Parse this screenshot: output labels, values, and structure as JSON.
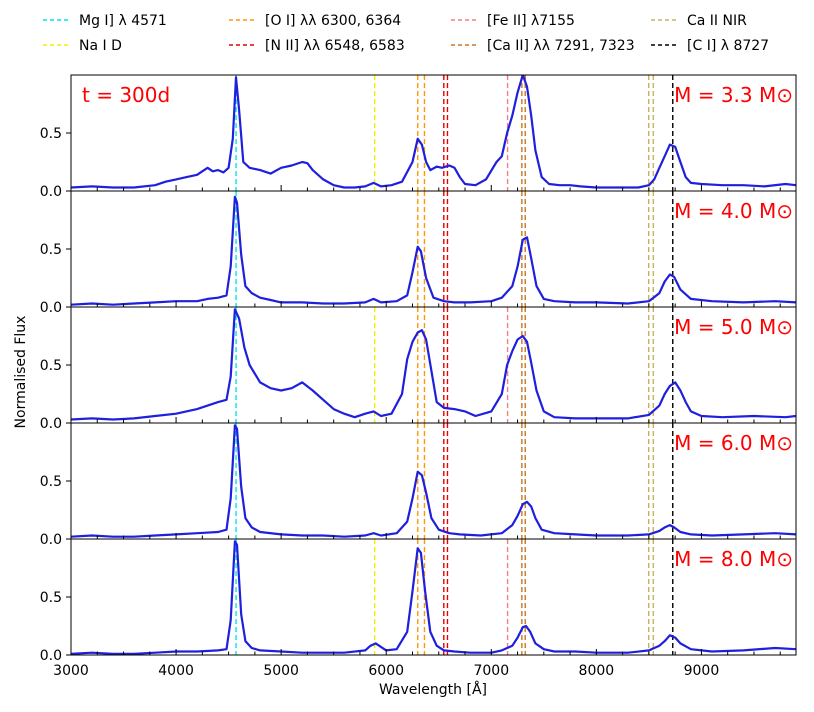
{
  "chart_data": {
    "type": "line",
    "xlabel": "Wavelength [Å]",
    "ylabel": "Normalised Flux",
    "xlim": [
      3000,
      9900
    ],
    "ylim": [
      0,
      1.0
    ],
    "x_ticks": [
      3000,
      4000,
      5000,
      6000,
      7000,
      8000,
      9000
    ],
    "x_tick_labels": [
      "3000",
      "4000",
      "5000",
      "6000",
      "7000",
      "8000",
      "9000"
    ],
    "y_ticks": [
      0,
      0.5
    ],
    "y_tick_labels": [
      "0.0",
      "0.5"
    ],
    "time_label": "t = 300d",
    "line_color": "#1f1fde",
    "legend": [
      {
        "label": "Mg I] λ 4571",
        "color": "#00e5ee"
      },
      {
        "label": "Na I D",
        "color": "#f2f200"
      },
      {
        "label": "[O I] λλ 6300, 6364",
        "color": "#ff9900"
      },
      {
        "label": "[N II] λλ 6548, 6583",
        "color": "#e60000"
      },
      {
        "label": "[Fe II] λ7155",
        "color": "#f08080"
      },
      {
        "label": "[Ca II] λλ 7291, 7323",
        "color": "#cc7722"
      },
      {
        "label": "Ca II NIR",
        "color": "#c8b060"
      },
      {
        "label": "[C I] λ 8727",
        "color": "#000000"
      }
    ],
    "reference_lines": [
      {
        "group": 0,
        "x": [
          4571
        ],
        "panels": [
          0,
          1,
          2,
          3,
          4
        ]
      },
      {
        "group": 1,
        "x": [
          5890
        ],
        "panels": [
          0,
          2,
          4
        ]
      },
      {
        "group": 2,
        "x": [
          6300,
          6364
        ],
        "panels": [
          0,
          1,
          2,
          3,
          4
        ]
      },
      {
        "group": 3,
        "x": [
          6548,
          6583
        ],
        "panels": [
          0,
          1,
          2,
          3,
          4
        ]
      },
      {
        "group": 4,
        "x": [
          7155
        ],
        "panels": [
          0,
          2,
          4
        ]
      },
      {
        "group": 5,
        "x": [
          7291,
          7323
        ],
        "panels": [
          0,
          1,
          2,
          3,
          4
        ]
      },
      {
        "group": 6,
        "x": [
          8498,
          8542
        ],
        "panels": [
          0,
          1,
          2,
          3,
          4
        ]
      },
      {
        "group": 7,
        "x": [
          8727
        ],
        "panels": [
          0,
          1,
          2,
          3,
          4
        ]
      }
    ],
    "panels": [
      {
        "mass_label": "M = 3.3 M⊙",
        "x": [
          3000,
          3200,
          3400,
          3600,
          3800,
          3900,
          4000,
          4100,
          4200,
          4250,
          4300,
          4350,
          4400,
          4450,
          4500,
          4540,
          4570,
          4600,
          4640,
          4700,
          4800,
          4900,
          5000,
          5100,
          5200,
          5250,
          5300,
          5400,
          5500,
          5600,
          5700,
          5800,
          5880,
          5950,
          6050,
          6150,
          6250,
          6300,
          6340,
          6380,
          6420,
          6480,
          6530,
          6600,
          6650,
          6700,
          6750,
          6850,
          6950,
          7050,
          7100,
          7150,
          7200,
          7250,
          7300,
          7340,
          7380,
          7420,
          7480,
          7550,
          7650,
          7750,
          7850,
          8000,
          8200,
          8400,
          8500,
          8550,
          8600,
          8650,
          8700,
          8750,
          8800,
          8850,
          8900,
          9000,
          9200,
          9400,
          9600,
          9800,
          9900
        ],
        "values": [
          0.03,
          0.04,
          0.03,
          0.03,
          0.05,
          0.08,
          0.1,
          0.12,
          0.14,
          0.17,
          0.2,
          0.17,
          0.18,
          0.16,
          0.2,
          0.45,
          0.98,
          0.7,
          0.25,
          0.2,
          0.18,
          0.15,
          0.2,
          0.22,
          0.25,
          0.24,
          0.18,
          0.1,
          0.05,
          0.03,
          0.03,
          0.04,
          0.07,
          0.04,
          0.05,
          0.08,
          0.25,
          0.45,
          0.4,
          0.25,
          0.18,
          0.21,
          0.2,
          0.22,
          0.2,
          0.12,
          0.06,
          0.05,
          0.1,
          0.25,
          0.3,
          0.5,
          0.65,
          0.85,
          1.0,
          0.9,
          0.65,
          0.35,
          0.12,
          0.06,
          0.05,
          0.05,
          0.04,
          0.03,
          0.03,
          0.03,
          0.05,
          0.1,
          0.2,
          0.3,
          0.4,
          0.38,
          0.25,
          0.12,
          0.07,
          0.06,
          0.05,
          0.05,
          0.04,
          0.06,
          0.05
        ]
      },
      {
        "mass_label": "M = 4.0 M⊙",
        "x": [
          3000,
          3200,
          3400,
          3600,
          3800,
          4000,
          4200,
          4300,
          4400,
          4480,
          4520,
          4560,
          4580,
          4620,
          4660,
          4720,
          4800,
          4900,
          5000,
          5200,
          5400,
          5600,
          5800,
          5880,
          5950,
          6100,
          6200,
          6250,
          6300,
          6330,
          6380,
          6450,
          6550,
          6650,
          6800,
          7000,
          7100,
          7200,
          7250,
          7300,
          7340,
          7380,
          7430,
          7500,
          7600,
          7800,
          8000,
          8300,
          8500,
          8600,
          8650,
          8700,
          8740,
          8800,
          8900,
          9100,
          9400,
          9700,
          9900
        ],
        "values": [
          0.02,
          0.03,
          0.02,
          0.03,
          0.04,
          0.05,
          0.05,
          0.07,
          0.08,
          0.1,
          0.35,
          0.95,
          0.9,
          0.45,
          0.18,
          0.12,
          0.08,
          0.06,
          0.04,
          0.04,
          0.03,
          0.03,
          0.04,
          0.07,
          0.04,
          0.05,
          0.1,
          0.3,
          0.52,
          0.48,
          0.25,
          0.08,
          0.05,
          0.04,
          0.04,
          0.05,
          0.08,
          0.18,
          0.35,
          0.58,
          0.6,
          0.42,
          0.18,
          0.07,
          0.05,
          0.04,
          0.04,
          0.03,
          0.05,
          0.12,
          0.22,
          0.28,
          0.26,
          0.15,
          0.07,
          0.05,
          0.04,
          0.05,
          0.04
        ]
      },
      {
        "mass_label": "M = 5.0 M⊙",
        "x": [
          3000,
          3200,
          3400,
          3600,
          3800,
          4000,
          4200,
          4300,
          4400,
          4480,
          4520,
          4560,
          4600,
          4650,
          4700,
          4800,
          4900,
          5000,
          5100,
          5200,
          5300,
          5400,
          5500,
          5600,
          5700,
          5800,
          5880,
          5950,
          6050,
          6150,
          6200,
          6250,
          6300,
          6340,
          6380,
          6430,
          6480,
          6550,
          6650,
          6750,
          6850,
          7000,
          7100,
          7150,
          7200,
          7250,
          7300,
          7340,
          7380,
          7430,
          7500,
          7600,
          7800,
          8000,
          8300,
          8500,
          8600,
          8650,
          8700,
          8750,
          8800,
          8850,
          8900,
          9000,
          9200,
          9500,
          9800,
          9900
        ],
        "values": [
          0.03,
          0.04,
          0.03,
          0.04,
          0.06,
          0.08,
          0.12,
          0.15,
          0.18,
          0.2,
          0.4,
          0.98,
          0.9,
          0.65,
          0.5,
          0.35,
          0.3,
          0.28,
          0.3,
          0.35,
          0.28,
          0.2,
          0.12,
          0.08,
          0.05,
          0.08,
          0.1,
          0.06,
          0.08,
          0.25,
          0.55,
          0.7,
          0.78,
          0.8,
          0.72,
          0.45,
          0.18,
          0.13,
          0.12,
          0.1,
          0.06,
          0.1,
          0.25,
          0.5,
          0.62,
          0.72,
          0.75,
          0.7,
          0.52,
          0.28,
          0.1,
          0.05,
          0.04,
          0.04,
          0.04,
          0.07,
          0.15,
          0.25,
          0.32,
          0.35,
          0.28,
          0.18,
          0.1,
          0.06,
          0.05,
          0.06,
          0.05,
          0.06
        ]
      },
      {
        "mass_label": "M = 6.0 M⊙",
        "x": [
          3000,
          3200,
          3400,
          3600,
          3800,
          4000,
          4200,
          4400,
          4480,
          4520,
          4560,
          4580,
          4620,
          4660,
          4720,
          4800,
          5000,
          5200,
          5400,
          5600,
          5800,
          5880,
          5950,
          6100,
          6200,
          6250,
          6300,
          6340,
          6380,
          6430,
          6500,
          6600,
          6700,
          6900,
          7100,
          7200,
          7250,
          7300,
          7340,
          7380,
          7420,
          7480,
          7600,
          7800,
          8000,
          8300,
          8500,
          8600,
          8650,
          8700,
          8740,
          8800,
          8900,
          9100,
          9400,
          9700,
          9900
        ],
        "values": [
          0.02,
          0.03,
          0.02,
          0.02,
          0.03,
          0.04,
          0.05,
          0.06,
          0.08,
          0.35,
          0.98,
          0.95,
          0.45,
          0.18,
          0.1,
          0.06,
          0.04,
          0.03,
          0.03,
          0.02,
          0.03,
          0.05,
          0.03,
          0.05,
          0.15,
          0.35,
          0.58,
          0.55,
          0.4,
          0.18,
          0.08,
          0.05,
          0.04,
          0.03,
          0.05,
          0.12,
          0.2,
          0.3,
          0.32,
          0.28,
          0.18,
          0.08,
          0.05,
          0.04,
          0.03,
          0.03,
          0.04,
          0.07,
          0.1,
          0.12,
          0.1,
          0.06,
          0.04,
          0.03,
          0.04,
          0.05,
          0.04
        ]
      },
      {
        "mass_label": "M = 8.0 M⊙",
        "x": [
          3000,
          3200,
          3400,
          3600,
          3800,
          4000,
          4200,
          4400,
          4480,
          4520,
          4560,
          4580,
          4620,
          4660,
          4720,
          4800,
          5000,
          5200,
          5400,
          5600,
          5800,
          5850,
          5900,
          5950,
          6000,
          6100,
          6200,
          6250,
          6300,
          6330,
          6370,
          6420,
          6480,
          6550,
          6650,
          6800,
          7000,
          7100,
          7200,
          7250,
          7300,
          7330,
          7370,
          7420,
          7500,
          7600,
          7800,
          8000,
          8300,
          8500,
          8600,
          8650,
          8700,
          8750,
          8800,
          8900,
          9100,
          9400,
          9700,
          9900
        ],
        "values": [
          0.01,
          0.02,
          0.01,
          0.01,
          0.02,
          0.03,
          0.03,
          0.04,
          0.05,
          0.3,
          0.98,
          0.95,
          0.35,
          0.12,
          0.06,
          0.04,
          0.03,
          0.02,
          0.02,
          0.02,
          0.04,
          0.08,
          0.1,
          0.07,
          0.04,
          0.05,
          0.2,
          0.55,
          0.92,
          0.88,
          0.55,
          0.2,
          0.08,
          0.04,
          0.03,
          0.02,
          0.02,
          0.04,
          0.08,
          0.15,
          0.24,
          0.25,
          0.2,
          0.1,
          0.05,
          0.03,
          0.03,
          0.02,
          0.02,
          0.04,
          0.08,
          0.12,
          0.17,
          0.15,
          0.1,
          0.05,
          0.03,
          0.04,
          0.06,
          0.05
        ]
      }
    ]
  }
}
